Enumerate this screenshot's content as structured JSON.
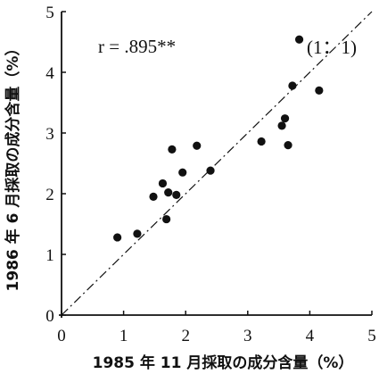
{
  "chart_data": {
    "type": "scatter",
    "xlabel": "1985 年 11 月採取の成分含量（%）",
    "ylabel": "1986 年 6 月採取の成分含量（%）",
    "xlim": [
      0,
      5
    ],
    "ylim": [
      0,
      5
    ],
    "xticks": [
      "0",
      "1",
      "2",
      "3",
      "4",
      "5"
    ],
    "yticks": [
      "0",
      "1",
      "2",
      "3",
      "4",
      "5"
    ],
    "grid": false,
    "annotations": {
      "correlation": "r = .895**",
      "reference_line": "(1：1)"
    },
    "reference_line": {
      "from": [
        0,
        0
      ],
      "to": [
        5,
        5
      ],
      "style": "dash-dot"
    },
    "points": [
      {
        "x": 0.9,
        "y": 1.28
      },
      {
        "x": 1.22,
        "y": 1.34
      },
      {
        "x": 1.48,
        "y": 1.95
      },
      {
        "x": 1.63,
        "y": 2.17
      },
      {
        "x": 1.69,
        "y": 1.58
      },
      {
        "x": 1.72,
        "y": 2.02
      },
      {
        "x": 1.78,
        "y": 2.73
      },
      {
        "x": 1.85,
        "y": 1.98
      },
      {
        "x": 1.95,
        "y": 2.35
      },
      {
        "x": 2.18,
        "y": 2.79
      },
      {
        "x": 2.4,
        "y": 2.38
      },
      {
        "x": 3.22,
        "y": 2.86
      },
      {
        "x": 3.55,
        "y": 3.12
      },
      {
        "x": 3.6,
        "y": 3.24
      },
      {
        "x": 3.65,
        "y": 2.8
      },
      {
        "x": 3.72,
        "y": 3.78
      },
      {
        "x": 3.83,
        "y": 4.54
      },
      {
        "x": 4.15,
        "y": 3.7
      }
    ]
  }
}
